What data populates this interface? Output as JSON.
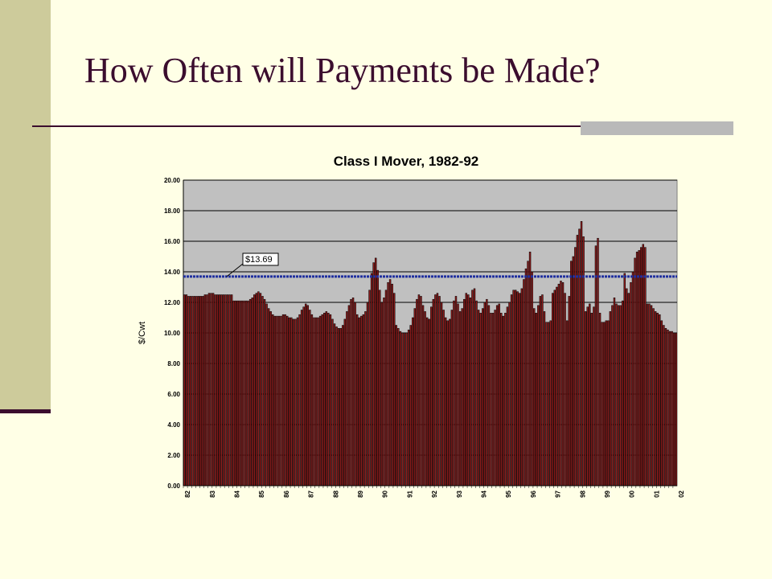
{
  "slide": {
    "title": "How Often will Payments be Made?"
  },
  "colors": {
    "background": "#FFFFE6",
    "sidebar": "#CDCB9B",
    "title_text": "#3B0D2E",
    "rule_accent": "#B9B9B9",
    "plot_background": "#C0C0C0",
    "bar_fill": "#8B1A1A",
    "reference_line": "#1F2F9F"
  },
  "chart_data": {
    "type": "bar",
    "title": "Class I Mover, 1982-92",
    "ylabel": "$/Cwt",
    "xlabel": "",
    "ylim": [
      0,
      20
    ],
    "yticks": [
      "0.00",
      "2.00",
      "4.00",
      "6.00",
      "8.00",
      "10.00",
      "12.00",
      "14.00",
      "16.00",
      "18.00",
      "20.00"
    ],
    "grid": true,
    "x_tick_labels": [
      "82",
      "83",
      "84",
      "85",
      "86",
      "87",
      "88",
      "89",
      "90",
      "91",
      "92",
      "93",
      "94",
      "95",
      "96",
      "97",
      "98",
      "99",
      "00",
      "01",
      "02"
    ],
    "reference_line": {
      "value": 13.69,
      "label": "$13.69"
    },
    "yearly_values": [
      [
        12.5,
        12.5,
        12.4,
        12.4,
        12.4,
        12.4,
        12.4,
        12.4,
        12.4,
        12.4,
        12.5,
        12.5
      ],
      [
        12.6,
        12.6,
        12.6,
        12.5,
        12.5,
        12.5,
        12.5,
        12.5,
        12.5,
        12.5,
        12.5,
        12.5
      ],
      [
        12.1,
        12.1,
        12.1,
        12.1,
        12.1,
        12.1,
        12.1,
        12.1,
        12.2,
        12.3,
        12.5,
        12.6
      ],
      [
        12.7,
        12.6,
        12.4,
        12.2,
        11.9,
        11.6,
        11.4,
        11.2,
        11.1,
        11.1,
        11.1,
        11.1
      ],
      [
        11.2,
        11.2,
        11.1,
        11.0,
        11.0,
        10.9,
        10.9,
        11.0,
        11.2,
        11.5,
        11.7,
        11.9
      ],
      [
        11.8,
        11.5,
        11.2,
        11.0,
        11.0,
        11.0,
        11.1,
        11.2,
        11.3,
        11.4,
        11.3,
        11.2
      ],
      [
        10.9,
        10.6,
        10.4,
        10.3,
        10.3,
        10.5,
        10.9,
        11.4,
        11.8,
        12.2,
        12.3,
        12.0
      ],
      [
        11.2,
        11.0,
        11.1,
        11.2,
        11.4,
        12.0,
        12.8,
        13.9,
        14.6,
        14.9,
        14.1,
        12.8
      ],
      [
        12.0,
        12.3,
        12.8,
        13.3,
        13.5,
        13.2,
        12.6,
        10.5,
        10.3,
        10.1,
        10.0,
        10.0
      ],
      [
        10.0,
        10.2,
        10.5,
        11.0,
        11.6,
        12.2,
        12.5,
        12.4,
        11.8,
        11.4,
        11.0,
        10.9
      ],
      [
        11.7,
        12.2,
        12.5,
        12.6,
        12.4,
        12.0,
        11.5,
        11.0,
        10.8,
        10.9,
        11.5,
        12.1
      ],
      [
        12.4,
        11.9,
        11.4,
        11.6,
        12.2,
        12.6,
        12.5,
        12.3,
        12.8,
        12.9,
        12.1,
        11.5
      ],
      [
        11.3,
        11.6,
        12.0,
        12.2,
        11.8,
        11.3,
        11.3,
        11.5,
        11.8,
        11.9,
        11.3,
        11.1
      ],
      [
        11.3,
        11.7,
        12.0,
        12.5,
        12.8,
        12.8,
        12.7,
        12.6,
        12.9,
        13.5,
        14.2,
        14.7
      ],
      [
        15.3,
        14.0,
        11.6,
        11.3,
        11.8,
        12.4,
        12.5,
        11.4,
        10.7,
        10.7,
        10.8,
        12.6
      ],
      [
        12.8,
        13.0,
        13.2,
        13.4,
        13.3,
        12.6,
        10.8,
        12.4,
        14.7,
        15.0,
        15.6,
        16.4
      ],
      [
        16.8,
        17.3,
        16.3,
        11.4,
        11.7,
        11.9,
        11.3,
        11.7,
        15.7,
        16.2,
        11.3,
        10.7
      ],
      [
        10.7,
        10.8,
        10.8,
        11.4,
        11.8,
        12.3,
        11.9,
        11.8,
        11.8,
        12.1,
        13.9,
        12.9
      ],
      [
        12.6,
        13.3,
        14.0,
        14.9,
        15.3,
        15.4,
        15.6,
        15.8,
        15.6,
        11.9,
        11.9,
        11.8
      ],
      [
        11.6,
        11.4,
        11.3,
        11.2,
        10.8,
        10.5,
        10.3,
        10.2,
        10.1,
        10.1,
        10.0,
        10.0
      ]
    ]
  }
}
